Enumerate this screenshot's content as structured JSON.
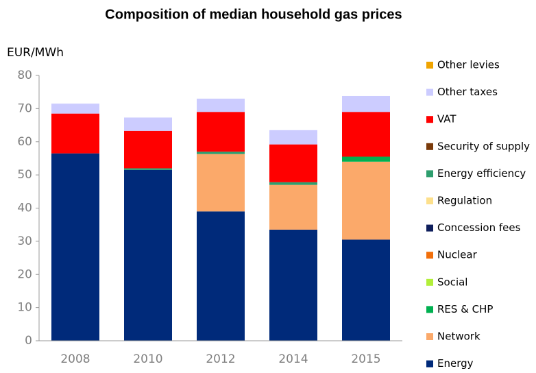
{
  "chart_data": {
    "type": "stacked_bar",
    "title": "Composition of median household gas prices",
    "y_label": "EUR/MWh",
    "categories": [
      "2008",
      "2010",
      "2012",
      "2014",
      "2015"
    ],
    "series": [
      {
        "name": "Energy",
        "color": "#002a7a",
        "values": [
          56.5,
          51.5,
          39,
          33.5,
          30.5
        ]
      },
      {
        "name": "Network",
        "color": "#fba96a",
        "values": [
          0,
          0,
          17.3,
          13.5,
          23.5
        ]
      },
      {
        "name": "RES & CHP",
        "color": "#00b050",
        "values": [
          0,
          0,
          0,
          0,
          1.5
        ]
      },
      {
        "name": "Social",
        "color": "#b2ef3a",
        "values": [
          0,
          0,
          0,
          0,
          0
        ]
      },
      {
        "name": "Nuclear",
        "color": "#f26f0a",
        "values": [
          0,
          0,
          0,
          0,
          0
        ]
      },
      {
        "name": "Concession fees",
        "color": "#0e1e5c",
        "values": [
          0,
          0,
          0,
          0,
          0
        ]
      },
      {
        "name": "Regulation",
        "color": "#fde08c",
        "values": [
          0,
          0,
          0,
          0,
          0
        ]
      },
      {
        "name": "Energy efficiency",
        "color": "#2e9e6e",
        "values": [
          0,
          0.5,
          0.7,
          0.8,
          0
        ]
      },
      {
        "name": "Security of supply",
        "color": "#7a3a0a",
        "values": [
          0,
          0,
          0,
          0,
          0
        ]
      },
      {
        "name": "VAT",
        "color": "#ff0000",
        "values": [
          12,
          11.3,
          12,
          11.4,
          13.5
        ]
      },
      {
        "name": "Other taxes",
        "color": "#ccccff",
        "values": [
          3,
          4,
          4,
          4.3,
          4.8
        ]
      },
      {
        "name": "Other levies",
        "color": "#f0a400",
        "values": [
          0,
          0,
          0,
          0,
          0
        ]
      }
    ],
    "ylim": [
      0,
      80
    ],
    "yticks": [
      0,
      10,
      20,
      30,
      40,
      50,
      60,
      70,
      80
    ],
    "grid": false,
    "legend": "right"
  }
}
